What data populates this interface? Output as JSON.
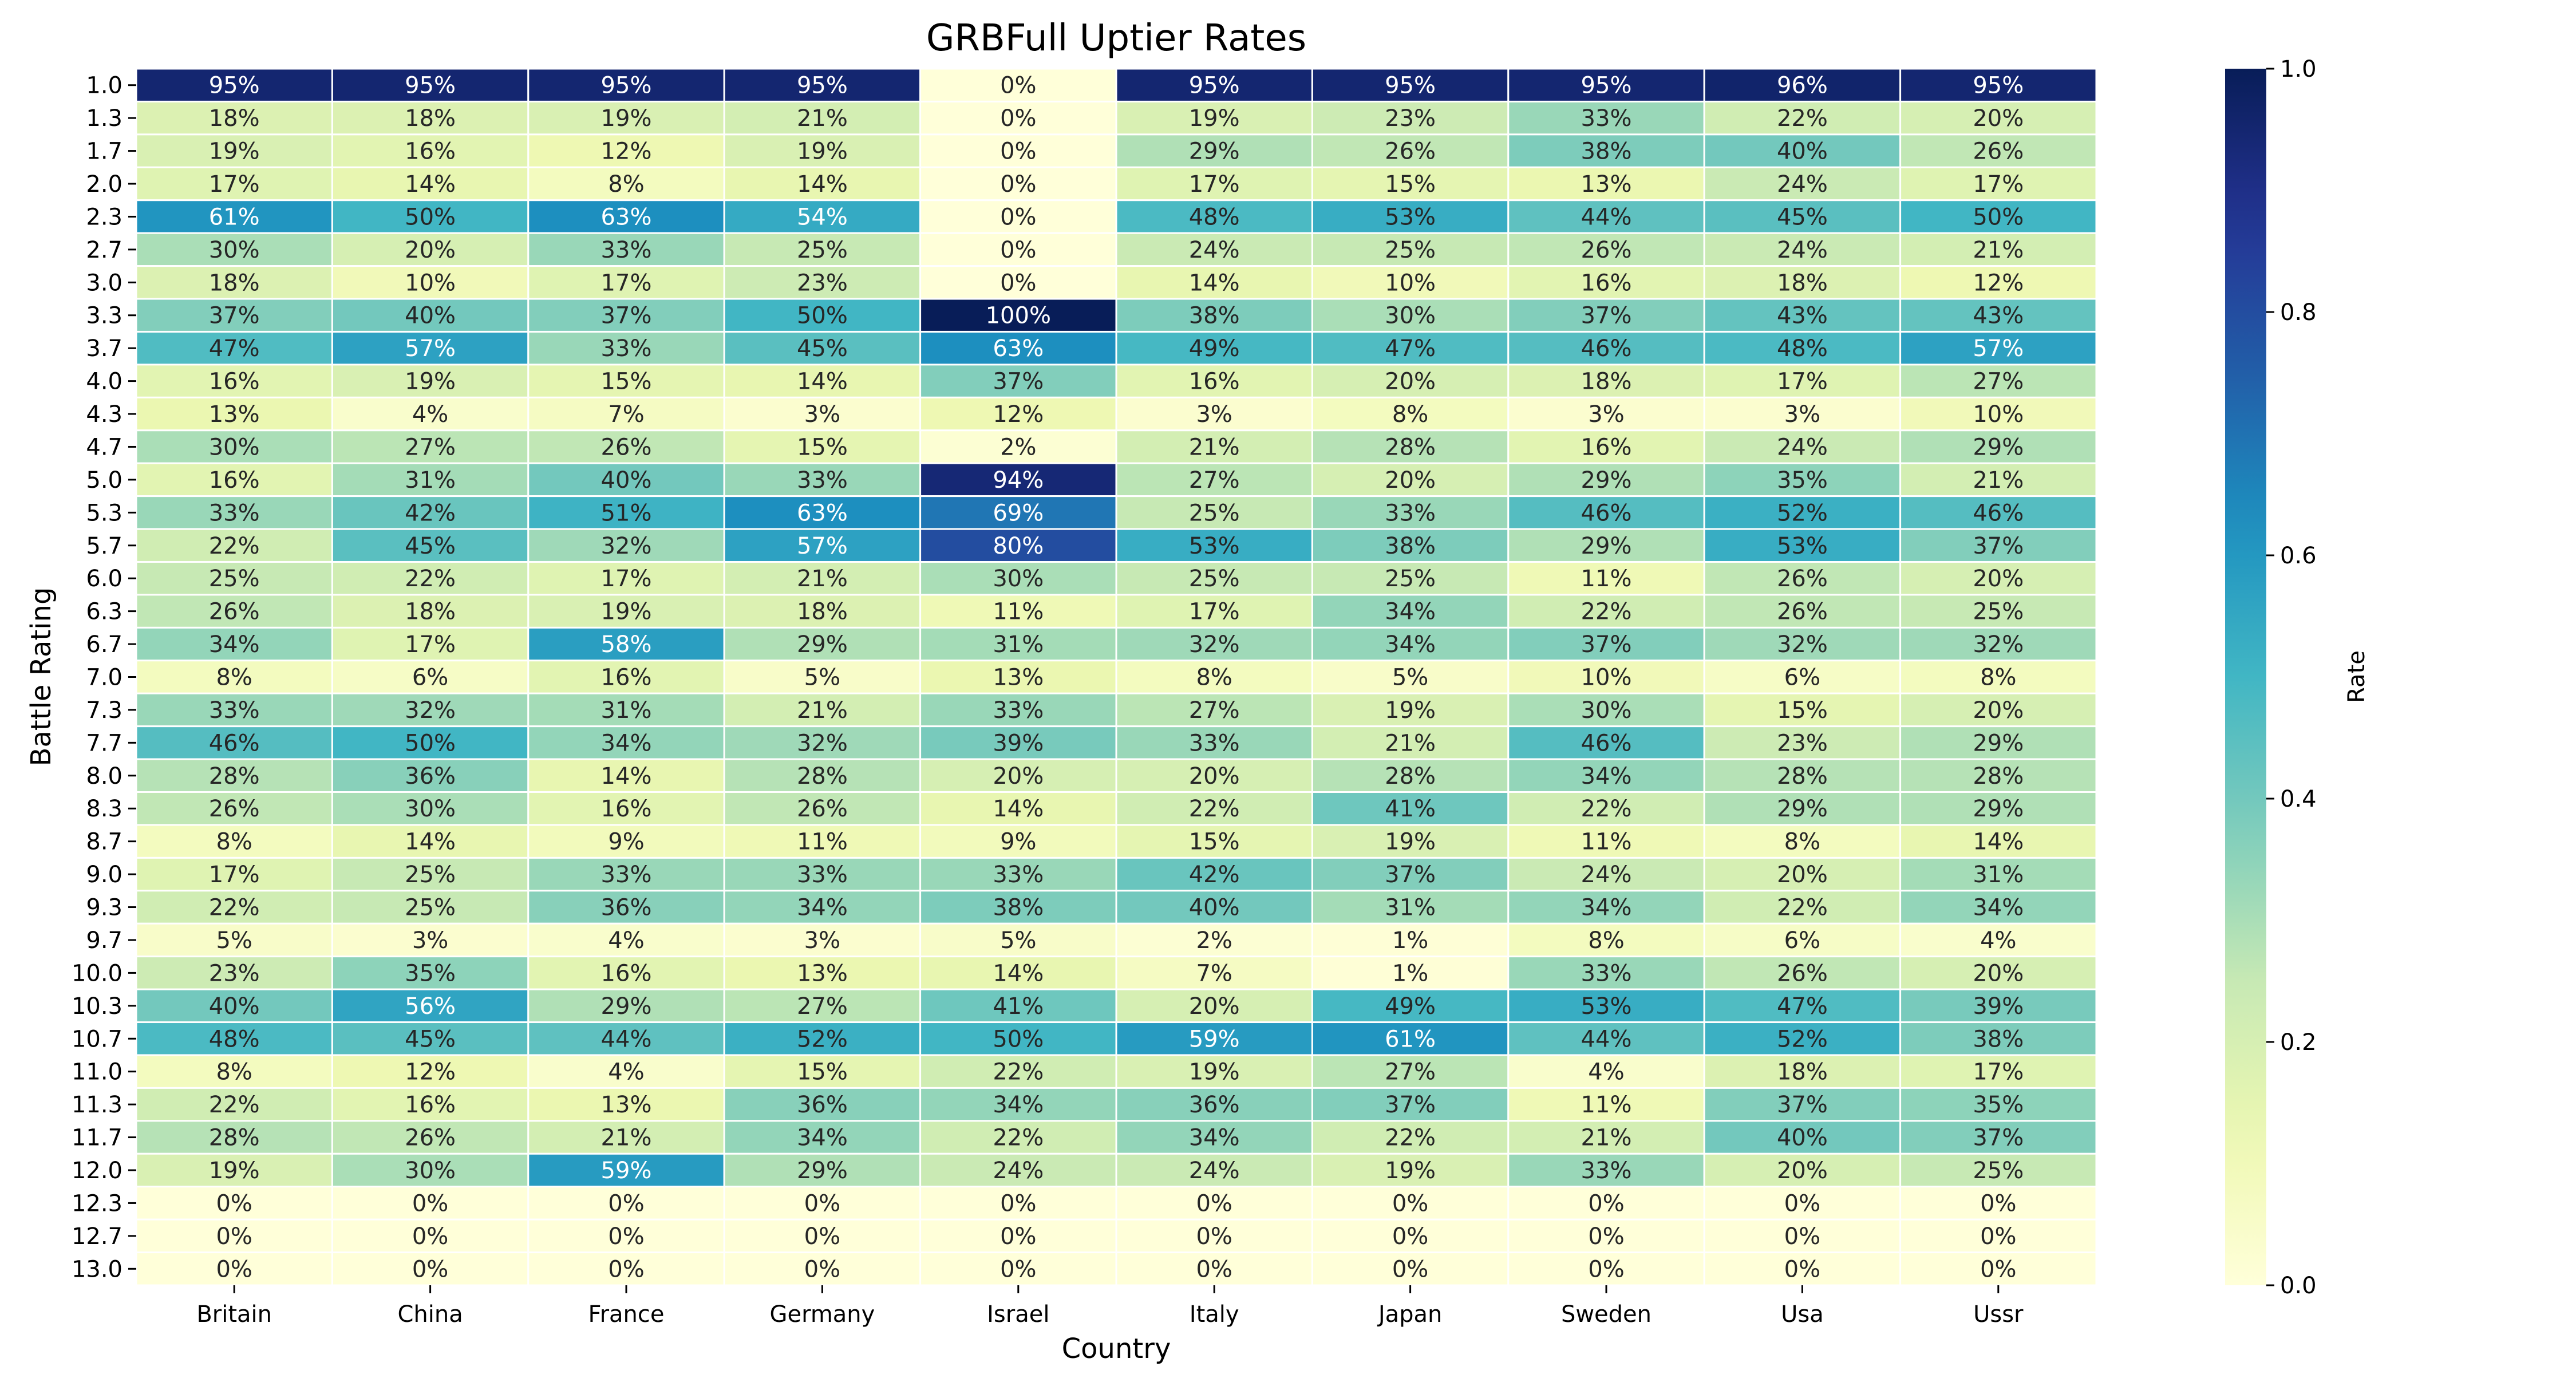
{
  "chart_data": {
    "type": "heatmap",
    "title": "GRBFull Uptier Rates",
    "xlabel": "Country",
    "ylabel": "Battle Rating",
    "x_categories": [
      "Britain",
      "China",
      "France",
      "Germany",
      "Israel",
      "Italy",
      "Japan",
      "Sweden",
      "Usa",
      "Ussr"
    ],
    "y_categories": [
      "1.0",
      "1.3",
      "1.7",
      "2.0",
      "2.3",
      "2.7",
      "3.0",
      "3.3",
      "3.7",
      "4.0",
      "4.3",
      "4.7",
      "5.0",
      "5.3",
      "5.7",
      "6.0",
      "6.3",
      "6.7",
      "7.0",
      "7.3",
      "7.7",
      "8.0",
      "8.3",
      "8.7",
      "9.0",
      "9.3",
      "9.7",
      "10.0",
      "10.3",
      "10.7",
      "11.0",
      "11.3",
      "11.7",
      "12.0",
      "12.3",
      "12.7",
      "13.0"
    ],
    "values": [
      [
        95,
        95,
        95,
        95,
        0,
        95,
        95,
        95,
        96,
        95
      ],
      [
        18,
        18,
        19,
        21,
        0,
        19,
        23,
        33,
        22,
        20
      ],
      [
        19,
        16,
        12,
        19,
        0,
        29,
        26,
        38,
        40,
        26
      ],
      [
        17,
        14,
        8,
        14,
        0,
        17,
        15,
        13,
        24,
        17
      ],
      [
        61,
        50,
        63,
        54,
        0,
        48,
        53,
        44,
        45,
        50
      ],
      [
        30,
        20,
        33,
        25,
        0,
        24,
        25,
        26,
        24,
        21
      ],
      [
        18,
        10,
        17,
        23,
        0,
        14,
        10,
        16,
        18,
        12
      ],
      [
        37,
        40,
        37,
        50,
        100,
        38,
        30,
        37,
        43,
        43
      ],
      [
        47,
        57,
        33,
        45,
        63,
        49,
        47,
        46,
        48,
        57
      ],
      [
        16,
        19,
        15,
        14,
        37,
        16,
        20,
        18,
        17,
        27
      ],
      [
        13,
        4,
        7,
        3,
        12,
        3,
        8,
        3,
        3,
        10
      ],
      [
        30,
        27,
        26,
        15,
        2,
        21,
        28,
        16,
        24,
        29
      ],
      [
        16,
        31,
        40,
        33,
        94,
        27,
        20,
        29,
        35,
        21
      ],
      [
        33,
        42,
        51,
        63,
        69,
        25,
        33,
        46,
        52,
        46
      ],
      [
        22,
        45,
        32,
        57,
        80,
        53,
        38,
        29,
        53,
        37
      ],
      [
        25,
        22,
        17,
        21,
        30,
        25,
        25,
        11,
        26,
        20
      ],
      [
        26,
        18,
        19,
        18,
        11,
        17,
        34,
        22,
        26,
        25
      ],
      [
        34,
        17,
        58,
        29,
        31,
        32,
        34,
        37,
        32,
        32
      ],
      [
        8,
        6,
        16,
        5,
        13,
        8,
        5,
        10,
        6,
        8
      ],
      [
        33,
        32,
        31,
        21,
        33,
        27,
        19,
        30,
        15,
        20
      ],
      [
        46,
        50,
        34,
        32,
        39,
        33,
        21,
        46,
        23,
        29
      ],
      [
        28,
        36,
        14,
        28,
        20,
        20,
        28,
        34,
        28,
        28
      ],
      [
        26,
        30,
        16,
        26,
        14,
        22,
        41,
        22,
        29,
        29
      ],
      [
        8,
        14,
        9,
        11,
        9,
        15,
        19,
        11,
        8,
        14
      ],
      [
        17,
        25,
        33,
        33,
        33,
        42,
        37,
        24,
        20,
        31
      ],
      [
        22,
        25,
        36,
        34,
        38,
        40,
        31,
        34,
        22,
        34
      ],
      [
        5,
        3,
        4,
        3,
        5,
        2,
        1,
        8,
        6,
        4
      ],
      [
        23,
        35,
        16,
        13,
        14,
        7,
        1,
        33,
        26,
        20
      ],
      [
        40,
        56,
        29,
        27,
        41,
        20,
        49,
        53,
        47,
        39
      ],
      [
        48,
        45,
        44,
        52,
        50,
        59,
        61,
        44,
        52,
        38
      ],
      [
        8,
        12,
        4,
        15,
        22,
        19,
        27,
        4,
        18,
        17
      ],
      [
        22,
        16,
        13,
        36,
        34,
        36,
        37,
        11,
        37,
        35
      ],
      [
        28,
        26,
        21,
        34,
        22,
        34,
        22,
        21,
        40,
        37
      ],
      [
        19,
        30,
        59,
        29,
        24,
        24,
        19,
        33,
        20,
        25
      ],
      [
        0,
        0,
        0,
        0,
        0,
        0,
        0,
        0,
        0,
        0
      ],
      [
        0,
        0,
        0,
        0,
        0,
        0,
        0,
        0,
        0,
        0
      ],
      [
        0,
        0,
        0,
        0,
        0,
        0,
        0,
        0,
        0,
        0
      ]
    ],
    "value_format": "percent",
    "colormap": "YlGnBu",
    "colorbar": {
      "label": "Rate",
      "range": [
        0.0,
        1.0
      ],
      "ticks": [
        "0.0",
        "0.2",
        "0.4",
        "0.6",
        "0.8",
        "1.0"
      ]
    },
    "grid_lines": "white"
  }
}
